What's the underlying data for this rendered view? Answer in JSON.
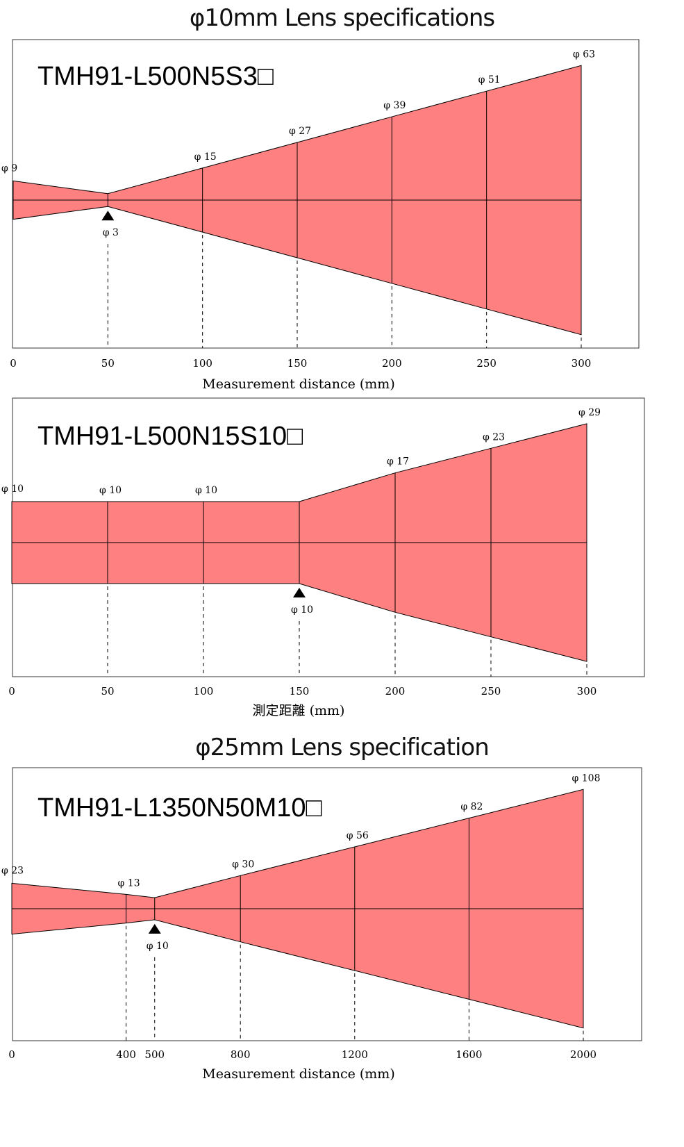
{
  "colors": {
    "beam_fill": "#ff8080",
    "line": "#000000",
    "frame": "#333333"
  },
  "sections": [
    {
      "title": "φ10mm Lens specifications"
    },
    {
      "title": "φ25mm Lens specification"
    }
  ],
  "chart_data": [
    {
      "type": "diagram",
      "model": "TMH91-L500N5S3□",
      "xlabel": "Measurement distance (mm)",
      "xlim": [
        0,
        330
      ],
      "ticks": [
        {
          "x": 0,
          "label": "0"
        },
        {
          "x": 50,
          "label": "50"
        },
        {
          "x": 100,
          "label": "100"
        },
        {
          "x": 150,
          "label": "150"
        },
        {
          "x": 200,
          "label": "200"
        },
        {
          "x": 250,
          "label": "250"
        },
        {
          "x": 300,
          "label": "300"
        }
      ],
      "points": [
        {
          "x": 0,
          "d": 9,
          "label": "φ 9"
        },
        {
          "x": 50,
          "d": 3,
          "label": "φ 3",
          "focus": true
        },
        {
          "x": 100,
          "d": 15,
          "label": "φ 15"
        },
        {
          "x": 150,
          "d": 27,
          "label": "φ 27"
        },
        {
          "x": 200,
          "d": 39,
          "label": "φ 39"
        },
        {
          "x": 250,
          "d": 51,
          "label": "φ 51"
        },
        {
          "x": 300,
          "d": 63,
          "label": "φ 63"
        }
      ]
    },
    {
      "type": "diagram",
      "model": "TMH91-L500N15S10□",
      "xlabel": "測定距離 (mm)",
      "xlim": [
        0,
        330
      ],
      "ticks": [
        {
          "x": 0,
          "label": "0"
        },
        {
          "x": 50,
          "label": "50"
        },
        {
          "x": 100,
          "label": "100"
        },
        {
          "x": 150,
          "label": "150"
        },
        {
          "x": 200,
          "label": "200"
        },
        {
          "x": 250,
          "label": "250"
        },
        {
          "x": 300,
          "label": "300"
        }
      ],
      "points": [
        {
          "x": 0,
          "d": 10,
          "label": "φ 10"
        },
        {
          "x": 50,
          "d": 10,
          "label": "φ 10"
        },
        {
          "x": 100,
          "d": 10,
          "label": "φ 10"
        },
        {
          "x": 150,
          "d": 10,
          "label": "φ 10",
          "focus": true
        },
        {
          "x": 200,
          "d": 17,
          "label": "φ 17"
        },
        {
          "x": 250,
          "d": 23,
          "label": "φ 23"
        },
        {
          "x": 300,
          "d": 29,
          "label": "φ 29"
        }
      ]
    },
    {
      "type": "diagram",
      "model": "TMH91-L1350N50M10□",
      "xlabel": "Measurement distance (mm)",
      "xlim": [
        0,
        2200
      ],
      "ticks": [
        {
          "x": 0,
          "label": "0"
        },
        {
          "x": 400,
          "label": "400"
        },
        {
          "x": 500,
          "label": "500"
        },
        {
          "x": 800,
          "label": "800"
        },
        {
          "x": 1200,
          "label": "1200"
        },
        {
          "x": 1600,
          "label": "1600"
        },
        {
          "x": 2000,
          "label": "2000"
        }
      ],
      "points": [
        {
          "x": 0,
          "d": 23,
          "label": "φ 23"
        },
        {
          "x": 400,
          "d": 13,
          "label": "φ 13"
        },
        {
          "x": 500,
          "d": 10,
          "label": "φ 10",
          "focus": true
        },
        {
          "x": 800,
          "d": 30,
          "label": "φ 30"
        },
        {
          "x": 1200,
          "d": 56,
          "label": "φ 56"
        },
        {
          "x": 1600,
          "d": 82,
          "label": "φ 82"
        },
        {
          "x": 2000,
          "d": 108,
          "label": "φ 108"
        }
      ]
    }
  ]
}
